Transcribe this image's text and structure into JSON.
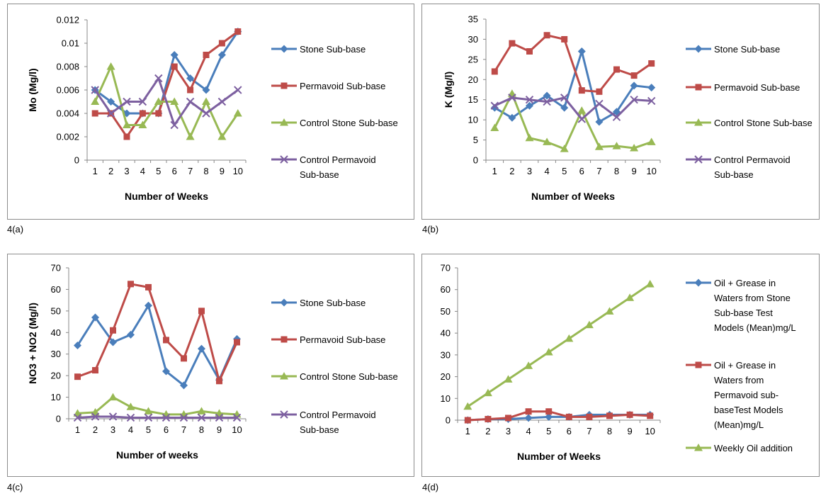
{
  "chart_data": [
    {
      "panel_label": "4(a)",
      "type": "line",
      "xlabel": "Number of Weeks",
      "ylabel": "Mo (Mg/l)",
      "ylim": [
        0,
        0.012
      ],
      "yticks": [
        "0",
        "0.002",
        "0.004",
        "0.006",
        "0.008",
        "0.01",
        "0.012"
      ],
      "x": [
        1,
        2,
        3,
        4,
        5,
        6,
        7,
        8,
        9,
        10
      ],
      "grid": false,
      "legend_position": "right",
      "series": [
        {
          "name": "Stone Sub-base",
          "color": "#4a7ebb",
          "marker": "diamond",
          "values": [
            0.006,
            0.005,
            0.004,
            0.004,
            0.004,
            0.009,
            0.007,
            0.006,
            0.009,
            0.011
          ]
        },
        {
          "name": "Permavoid Sub-base",
          "color": "#be4b48",
          "marker": "square",
          "values": [
            0.004,
            0.004,
            0.002,
            0.004,
            0.004,
            0.008,
            0.006,
            0.009,
            0.01,
            0.011
          ]
        },
        {
          "name": "Control Stone Sub-base",
          "color": "#98b954",
          "marker": "triangle",
          "values": [
            0.005,
            0.008,
            0.003,
            0.003,
            0.005,
            0.005,
            0.002,
            0.005,
            0.002,
            0.004
          ]
        },
        {
          "name": "Control Permavoid Sub-base",
          "color": "#7d60a0",
          "marker": "x",
          "values": [
            0.006,
            0.004,
            0.005,
            0.005,
            0.007,
            0.003,
            0.005,
            0.004,
            0.005,
            0.006
          ]
        }
      ]
    },
    {
      "panel_label": "4(b)",
      "type": "line",
      "xlabel": "Number of Weeks",
      "ylabel": "K (Mg/l)",
      "ylim": [
        0,
        35
      ],
      "yticks": [
        "0",
        "5",
        "10",
        "15",
        "20",
        "25",
        "30",
        "35"
      ],
      "x": [
        1,
        2,
        3,
        4,
        5,
        6,
        7,
        8,
        9,
        10
      ],
      "grid": false,
      "legend_position": "right",
      "series": [
        {
          "name": "Stone Sub-base",
          "color": "#4a7ebb",
          "marker": "diamond",
          "values": [
            13,
            10.5,
            13.5,
            16,
            13,
            27,
            9.5,
            12,
            18.5,
            18
          ]
        },
        {
          "name": "Permavoid Sub-base",
          "color": "#be4b48",
          "marker": "square",
          "values": [
            22,
            29,
            27,
            31,
            30,
            17.3,
            17,
            22.5,
            21,
            24
          ]
        },
        {
          "name": "Control Stone Sub-base",
          "color": "#98b954",
          "marker": "triangle",
          "values": [
            8,
            16.5,
            5.5,
            4.5,
            2.8,
            12.3,
            3.3,
            3.5,
            3,
            4.5
          ]
        },
        {
          "name": "Control Permavoid Sub-base",
          "color": "#7d60a0",
          "marker": "x",
          "values": [
            13.5,
            15.5,
            15,
            14.5,
            15.5,
            10.2,
            14,
            10.7,
            15,
            14.7
          ]
        }
      ]
    },
    {
      "panel_label": "4(c)",
      "type": "line",
      "xlabel": "Number of weeks",
      "ylabel": "NO3 + NO2 (Mg/l)",
      "ylim": [
        0,
        70
      ],
      "yticks": [
        "0",
        "10",
        "20",
        "30",
        "40",
        "50",
        "60",
        "70"
      ],
      "x": [
        1,
        2,
        3,
        4,
        5,
        6,
        7,
        8,
        9,
        10
      ],
      "grid": false,
      "legend_position": "right",
      "series": [
        {
          "name": "Stone Sub-base",
          "color": "#4a7ebb",
          "marker": "diamond",
          "values": [
            34,
            47,
            35.5,
            39,
            52.5,
            22,
            15.5,
            32.5,
            18,
            37
          ]
        },
        {
          "name": "Permavoid Sub-base",
          "color": "#be4b48",
          "marker": "square",
          "values": [
            19.5,
            22.5,
            41,
            62.5,
            61,
            36.5,
            28,
            50,
            17.5,
            35.5
          ]
        },
        {
          "name": "Control Stone Sub-base",
          "color": "#98b954",
          "marker": "triangle",
          "values": [
            2.5,
            3,
            10,
            5.5,
            3.5,
            2,
            2,
            3.5,
            2.5,
            2
          ]
        },
        {
          "name": "Control Permavoid Sub-base",
          "color": "#7d60a0",
          "marker": "x",
          "values": [
            0.5,
            1,
            1,
            0.5,
            0.5,
            0.5,
            0.5,
            0.5,
            0.5,
            0.5
          ]
        }
      ]
    },
    {
      "panel_label": "4(d)",
      "type": "line",
      "xlabel": "Number of Weeks",
      "ylabel": "",
      "ylim": [
        0,
        70
      ],
      "yticks": [
        "0",
        "10",
        "20",
        "30",
        "40",
        "50",
        "60",
        "70"
      ],
      "x": [
        1,
        2,
        3,
        4,
        5,
        6,
        7,
        8,
        9,
        10
      ],
      "grid": false,
      "legend_position": "right",
      "series": [
        {
          "name": "Oil + Grease in Waters from Stone Sub-base Test Models (Mean)mg/L",
          "legend_lines": [
            "Oil + Grease in",
            "Waters from Stone",
            "Sub-base Test",
            "Models (Mean)mg/L"
          ],
          "color": "#4a7ebb",
          "marker": "diamond",
          "values": [
            0,
            0.5,
            0.5,
            1,
            1.5,
            1.5,
            2.5,
            2.5,
            2.5,
            2.5
          ]
        },
        {
          "name": "Oil + Grease in Waters from Permavoid sub-baseTest Models (Mean)mg/L",
          "legend_lines": [
            "Oil + Grease in",
            "Waters from",
            "Permavoid sub-",
            "baseTest Models",
            "(Mean)mg/L"
          ],
          "color": "#be4b48",
          "marker": "square",
          "values": [
            0,
            0.5,
            1,
            4,
            4,
            1.5,
            1.5,
            2,
            2.5,
            2
          ]
        },
        {
          "name": "Weekly Oil addition",
          "legend_lines": [
            "Weekly Oil addition"
          ],
          "color": "#98b954",
          "marker": "triangle",
          "values": [
            6.25,
            12.5,
            18.75,
            25,
            31.25,
            37.5,
            43.75,
            50,
            56.25,
            62.5
          ]
        }
      ]
    }
  ]
}
